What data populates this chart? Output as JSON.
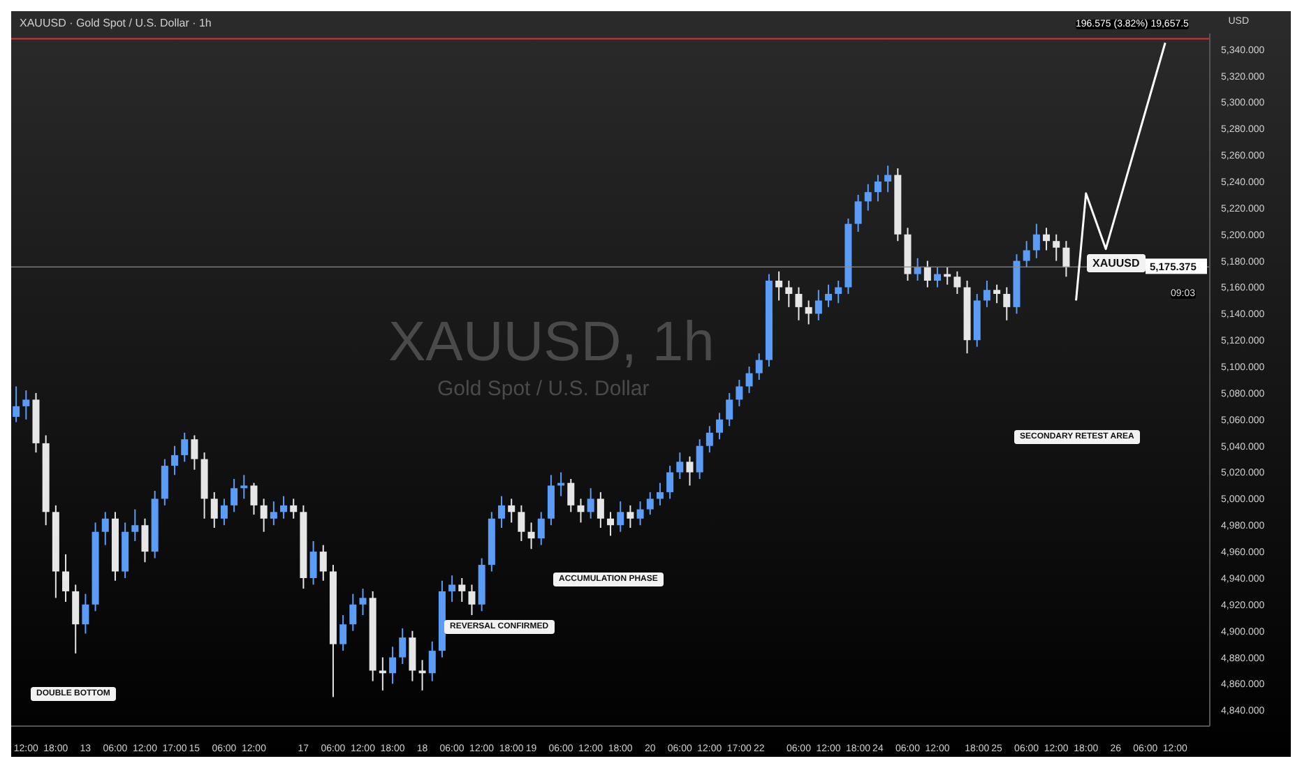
{
  "chart_data": {
    "type": "candlestick",
    "title": "XAUUSD · Gold Spot / U.S. Dollar · 1h",
    "ylabel": "USD",
    "categories": [
      null,
      "12:00",
      null,
      null,
      "18:00",
      null,
      null,
      "13",
      null,
      null,
      "06:00",
      null,
      null,
      "12:00",
      null,
      null,
      "17:00",
      null,
      "15",
      null,
      null,
      "06:00",
      null,
      null,
      "12:00",
      null,
      null,
      null,
      null,
      "17",
      null,
      null,
      "06:00",
      null,
      null,
      "12:00",
      null,
      null,
      "18:00",
      null,
      null,
      "18",
      null,
      null,
      "06:00",
      null,
      null,
      "12:00",
      null,
      null,
      "18:00",
      null,
      "19",
      null,
      null,
      "06:00",
      null,
      null,
      "12:00",
      null,
      null,
      "18:00",
      null,
      null,
      "20",
      null,
      null,
      "06:00",
      null,
      null,
      "12:00",
      null,
      null,
      "17:00",
      null,
      "22",
      null,
      null,
      null,
      "06:00",
      null,
      null,
      "12:00",
      null,
      null,
      "18:00",
      null,
      "24",
      null,
      null,
      "06:00",
      null,
      null,
      "12:00",
      null,
      null,
      null,
      "18:00",
      null,
      "25",
      null,
      null,
      "06:00",
      null,
      null,
      "12:00",
      null,
      null,
      "18:00",
      null,
      null,
      "26",
      null,
      null,
      "06:00",
      null,
      null,
      "12:00",
      null,
      null,
      null
    ],
    "ohlc": [
      [
        5062,
        5085,
        5058,
        5070
      ],
      [
        5070,
        5082,
        5060,
        5075
      ],
      [
        5075,
        5080,
        5035,
        5042
      ],
      [
        5042,
        5048,
        4980,
        4990
      ],
      [
        4990,
        4995,
        4925,
        4945
      ],
      [
        4945,
        4958,
        4922,
        4930
      ],
      [
        4930,
        4935,
        4883,
        4905
      ],
      [
        4905,
        4928,
        4898,
        4920
      ],
      [
        4920,
        4982,
        4915,
        4975
      ],
      [
        4975,
        4990,
        4965,
        4985
      ],
      [
        4985,
        4990,
        4938,
        4945
      ],
      [
        4945,
        4982,
        4940,
        4975
      ],
      [
        4975,
        4992,
        4968,
        4980
      ],
      [
        4980,
        4985,
        4952,
        4960
      ],
      [
        4960,
        5006,
        4955,
        5000
      ],
      [
        5000,
        5030,
        4995,
        5025
      ],
      [
        5025,
        5040,
        5018,
        5033
      ],
      [
        5033,
        5050,
        5028,
        5045
      ],
      [
        5045,
        5048,
        5022,
        5030
      ],
      [
        5030,
        5035,
        4985,
        5000
      ],
      [
        5000,
        5005,
        4978,
        4985
      ],
      [
        4985,
        5000,
        4980,
        4995
      ],
      [
        4995,
        5015,
        4990,
        5008
      ],
      [
        5008,
        5018,
        5000,
        5010
      ],
      [
        5010,
        5012,
        4988,
        4995
      ],
      [
        4995,
        5000,
        4975,
        4985
      ],
      [
        4985,
        4998,
        4980,
        4990
      ],
      [
        4990,
        5002,
        4985,
        4995
      ],
      [
        4995,
        5000,
        4985,
        4990
      ],
      [
        4990,
        4995,
        4932,
        4940
      ],
      [
        4940,
        4968,
        4935,
        4960
      ],
      [
        4960,
        4965,
        4938,
        4945
      ],
      [
        4945,
        4950,
        4850,
        4890
      ],
      [
        4890,
        4912,
        4885,
        4905
      ],
      [
        4905,
        4928,
        4900,
        4920
      ],
      [
        4920,
        4932,
        4912,
        4925
      ],
      [
        4925,
        4930,
        4862,
        4870
      ],
      [
        4870,
        4880,
        4855,
        4868
      ],
      [
        4868,
        4888,
        4860,
        4880
      ],
      [
        4880,
        4902,
        4875,
        4895
      ],
      [
        4895,
        4900,
        4862,
        4870
      ],
      [
        4870,
        4878,
        4855,
        4868
      ],
      [
        4868,
        4892,
        4862,
        4885
      ],
      [
        4885,
        4938,
        4880,
        4930
      ],
      [
        4930,
        4942,
        4922,
        4935
      ],
      [
        4935,
        4940,
        4922,
        4930
      ],
      [
        4930,
        4935,
        4912,
        4920
      ],
      [
        4920,
        4955,
        4915,
        4950
      ],
      [
        4950,
        4990,
        4945,
        4985
      ],
      [
        4985,
        5002,
        4978,
        4995
      ],
      [
        4995,
        5000,
        4982,
        4990
      ],
      [
        4990,
        4995,
        4968,
        4975
      ],
      [
        4975,
        4982,
        4962,
        4970
      ],
      [
        4970,
        4990,
        4965,
        4985
      ],
      [
        4985,
        5018,
        4980,
        5010
      ],
      [
        5010,
        5020,
        5002,
        5012
      ],
      [
        5012,
        5015,
        4990,
        4995
      ],
      [
        4995,
        5000,
        4982,
        4990
      ],
      [
        4990,
        5008,
        4985,
        5000
      ],
      [
        5000,
        5005,
        4978,
        4985
      ],
      [
        4985,
        4990,
        4972,
        4980
      ],
      [
        4980,
        4998,
        4975,
        4990
      ],
      [
        4990,
        4995,
        4978,
        4985
      ],
      [
        4985,
        4998,
        4980,
        4992
      ],
      [
        4992,
        5005,
        4988,
        5000
      ],
      [
        5000,
        5012,
        4995,
        5005
      ],
      [
        5005,
        5025,
        5000,
        5020
      ],
      [
        5020,
        5035,
        5015,
        5028
      ],
      [
        5028,
        5032,
        5010,
        5020
      ],
      [
        5020,
        5045,
        5015,
        5040
      ],
      [
        5040,
        5055,
        5035,
        5050
      ],
      [
        5050,
        5065,
        5045,
        5060
      ],
      [
        5060,
        5080,
        5055,
        5075
      ],
      [
        5075,
        5090,
        5070,
        5085
      ],
      [
        5085,
        5100,
        5080,
        5095
      ],
      [
        5095,
        5110,
        5090,
        5105
      ],
      [
        5105,
        5170,
        5100,
        5165
      ],
      [
        5165,
        5172,
        5150,
        5160
      ],
      [
        5160,
        5165,
        5145,
        5155
      ],
      [
        5155,
        5160,
        5135,
        5145
      ],
      [
        5145,
        5150,
        5132,
        5140
      ],
      [
        5140,
        5158,
        5135,
        5150
      ],
      [
        5150,
        5162,
        5145,
        5155
      ],
      [
        5155,
        5165,
        5148,
        5160
      ],
      [
        5160,
        5212,
        5155,
        5208
      ],
      [
        5208,
        5230,
        5202,
        5225
      ],
      [
        5225,
        5238,
        5218,
        5232
      ],
      [
        5232,
        5245,
        5225,
        5240
      ],
      [
        5240,
        5252,
        5232,
        5245
      ],
      [
        5245,
        5250,
        5195,
        5200
      ],
      [
        5200,
        5205,
        5165,
        5170
      ],
      [
        5170,
        5182,
        5165,
        5175
      ],
      [
        5175,
        5180,
        5160,
        5165
      ],
      [
        5165,
        5175,
        5160,
        5170
      ],
      [
        5170,
        5175,
        5162,
        5168
      ],
      [
        5168,
        5172,
        5155,
        5160
      ],
      [
        5160,
        5165,
        5110,
        5120
      ],
      [
        5120,
        5155,
        5115,
        5150
      ],
      [
        5150,
        5165,
        5145,
        5158
      ],
      [
        5158,
        5162,
        5148,
        5155
      ],
      [
        5155,
        5160,
        5135,
        5145
      ],
      [
        5145,
        5185,
        5140,
        5180
      ],
      [
        5180,
        5195,
        5175,
        5188
      ],
      [
        5188,
        5208,
        5182,
        5200
      ],
      [
        5200,
        5205,
        5188,
        5195
      ],
      [
        5195,
        5200,
        5180,
        5190
      ],
      [
        5190,
        5195,
        5168,
        5175
      ],
      null,
      null,
      null,
      null,
      null,
      null,
      null,
      null,
      null,
      null,
      null,
      null,
      null,
      null
    ],
    "colors": [
      "#5b9cf6",
      "#5b9cf6",
      "#e6e6e6",
      "#e6e6e6",
      "#e6e6e6",
      "#e6e6e6",
      "#e6e6e6",
      "#5b9cf6",
      "#5b9cf6",
      "#5b9cf6",
      "#e6e6e6",
      "#5b9cf6",
      "#5b9cf6",
      "#e6e6e6",
      "#5b9cf6",
      "#5b9cf6",
      "#5b9cf6",
      "#5b9cf6",
      "#e6e6e6",
      "#e6e6e6",
      "#e6e6e6",
      "#5b9cf6",
      "#5b9cf6",
      "#5b9cf6",
      "#e6e6e6",
      "#e6e6e6",
      "#5b9cf6",
      "#5b9cf6",
      "#e6e6e6",
      "#e6e6e6",
      "#5b9cf6",
      "#e6e6e6",
      "#e6e6e6",
      "#5b9cf6",
      "#5b9cf6",
      "#5b9cf6",
      "#e6e6e6",
      "#e6e6e6",
      "#5b9cf6",
      "#5b9cf6",
      "#e6e6e6",
      "#e6e6e6",
      "#5b9cf6",
      "#5b9cf6",
      "#5b9cf6",
      "#e6e6e6",
      "#e6e6e6",
      "#5b9cf6",
      "#5b9cf6",
      "#5b9cf6",
      "#e6e6e6",
      "#e6e6e6",
      "#e6e6e6",
      "#5b9cf6",
      "#5b9cf6",
      "#5b9cf6",
      "#e6e6e6",
      "#e6e6e6",
      "#5b9cf6",
      "#e6e6e6",
      "#e6e6e6",
      "#5b9cf6",
      "#e6e6e6",
      "#5b9cf6",
      "#5b9cf6",
      "#5b9cf6",
      "#5b9cf6",
      "#5b9cf6",
      "#e6e6e6",
      "#5b9cf6",
      "#5b9cf6",
      "#5b9cf6",
      "#5b9cf6",
      "#5b9cf6",
      "#5b9cf6",
      "#5b9cf6",
      "#5b9cf6",
      "#e6e6e6",
      "#e6e6e6",
      "#e6e6e6",
      "#e6e6e6",
      "#5b9cf6",
      "#5b9cf6",
      "#5b9cf6",
      "#5b9cf6",
      "#5b9cf6",
      "#5b9cf6",
      "#5b9cf6",
      "#5b9cf6",
      "#e6e6e6",
      "#e6e6e6",
      "#5b9cf6",
      "#e6e6e6",
      "#5b9cf6",
      "#e6e6e6",
      "#e6e6e6",
      "#e6e6e6",
      "#5b9cf6",
      "#5b9cf6",
      "#e6e6e6",
      "#e6e6e6",
      "#5b9cf6",
      "#5b9cf6",
      "#5b9cf6",
      "#e6e6e6",
      "#e6e6e6",
      "#e6e6e6",
      null,
      null,
      null,
      null,
      null,
      null,
      null,
      null,
      null,
      null,
      null,
      null,
      null,
      null
    ],
    "series": [
      {
        "type": "line",
        "color": "#ffffff",
        "values": [
          null,
          null,
          null,
          null,
          null,
          null,
          null,
          null,
          null,
          null,
          null,
          null,
          null,
          null,
          null,
          null,
          null,
          null,
          null,
          null,
          null,
          null,
          null,
          null,
          null,
          null,
          null,
          null,
          null,
          null,
          null,
          null,
          null,
          null,
          null,
          null,
          null,
          null,
          null,
          null,
          null,
          null,
          null,
          null,
          null,
          null,
          null,
          null,
          null,
          null,
          null,
          null,
          null,
          null,
          null,
          null,
          null,
          null,
          null,
          null,
          null,
          null,
          null,
          null,
          null,
          null,
          null,
          null,
          null,
          null,
          null,
          null,
          null,
          null,
          null,
          null,
          null,
          null,
          null,
          null,
          null,
          null,
          null,
          null,
          null,
          null,
          null,
          null,
          null,
          null,
          null,
          null,
          null,
          null,
          null,
          null,
          null,
          null,
          null,
          null,
          null,
          null,
          null,
          null,
          null,
          null,
          null,
          5150,
          5231,
          null,
          5189,
          null,
          null,
          null,
          null,
          null,
          5345,
          null,
          null,
          null,
          null
        ]
      }
    ],
    "ylim": [
      4828,
      5352
    ],
    "yticks": [
      {
        "value": 4840,
        "label": "4,840.000"
      },
      {
        "value": 4860,
        "label": "4,860.000"
      },
      {
        "value": 4880,
        "label": "4,880.000"
      },
      {
        "value": 4900,
        "label": "4,900.000"
      },
      {
        "value": 4920,
        "label": "4,920.000"
      },
      {
        "value": 4940,
        "label": "4,940.000"
      },
      {
        "value": 4960,
        "label": "4,960.000"
      },
      {
        "value": 4980,
        "label": "4,980.000"
      },
      {
        "value": 5000,
        "label": "5,000.000"
      },
      {
        "value": 5020,
        "label": "5,020.000"
      },
      {
        "value": 5040,
        "label": "5,040.000"
      },
      {
        "value": 5060,
        "label": "5,060.000"
      },
      {
        "value": 5080,
        "label": "5,080.000"
      },
      {
        "value": 5100,
        "label": "5,100.000"
      },
      {
        "value": 5120,
        "label": "5,120.000"
      },
      {
        "value": 5140,
        "label": "5,140.000"
      },
      {
        "value": 5160,
        "label": "5,160.000"
      },
      {
        "value": 5180,
        "label": "5,180.000"
      },
      {
        "value": 5200,
        "label": "5,200.000"
      },
      {
        "value": 5220,
        "label": "5,220.000"
      },
      {
        "value": 5240,
        "label": "5,240.000"
      },
      {
        "value": 5260,
        "label": "5,260.000"
      },
      {
        "value": 5280,
        "label": "5,280.000"
      },
      {
        "value": 5300,
        "label": "5,300.000"
      },
      {
        "value": 5320,
        "label": "5,320.000"
      },
      {
        "value": 5340,
        "label": "5,340.000"
      }
    ],
    "ref_lines": [
      {
        "axis": "y",
        "value": 5175.375,
        "label": "5,175.375",
        "color": "#8a8a8a"
      },
      {
        "axis": "y",
        "value": 5348,
        "color": "#e03030"
      }
    ],
    "annotations": [
      "XAUUSD, 1h",
      "Gold Spot / U.S. Dollar",
      "DOUBLE BOTTOM",
      "REVERSAL CONFIRMED",
      "ACCUMULATION PHASE",
      "SECONDARY RETEST AREA",
      "XAUUSD",
      "09:03",
      "196.575 (3.82%) 19,657.5"
    ]
  }
}
